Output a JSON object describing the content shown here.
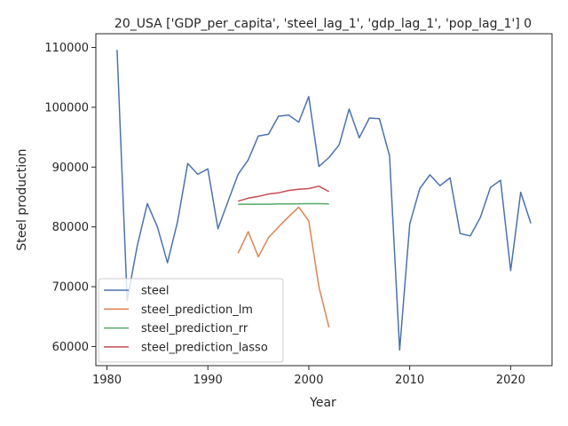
{
  "chart_data": {
    "type": "line",
    "title": "20_USA ['GDP_per_capita', 'steel_lag_1', 'gdp_lag_1', 'pop_lag_1'] 0",
    "xlabel": "Year",
    "ylabel": "Steel production",
    "xlim": [
      1978.9,
      2024.1
    ],
    "ylim": [
      56800,
      112300
    ],
    "xticks": [
      1980,
      1990,
      2000,
      2010,
      2020
    ],
    "yticks": [
      60000,
      70000,
      80000,
      90000,
      100000,
      110000
    ],
    "grid": false,
    "legend_position": "lower-left",
    "series": [
      {
        "name": "steel",
        "color": "#4c72b0",
        "x": [
          1981,
          1982,
          1983,
          1984,
          1985,
          1986,
          1987,
          1988,
          1989,
          1990,
          1991,
          1992,
          1993,
          1994,
          1995,
          1996,
          1997,
          1998,
          1999,
          2000,
          2001,
          2002,
          2003,
          2004,
          2005,
          2006,
          2007,
          2008,
          2009,
          2010,
          2011,
          2012,
          2013,
          2014,
          2015,
          2016,
          2017,
          2018,
          2019,
          2020,
          2021,
          2022
        ],
        "y": [
          109600,
          67700,
          76800,
          83900,
          80000,
          74000,
          80900,
          90600,
          88800,
          89700,
          79700,
          84300,
          88800,
          91200,
          95200,
          95500,
          98500,
          98700,
          97500,
          101800,
          90100,
          91600,
          93700,
          99700,
          94900,
          98200,
          98100,
          91900,
          59400,
          80500,
          86400,
          88700,
          86900,
          88200,
          78900,
          78500,
          81600,
          86600,
          87800,
          72700,
          85800,
          80600
        ]
      },
      {
        "name": "steel_prediction_lm",
        "color": "#dd8452",
        "x": [
          1993,
          1994,
          1995,
          1996,
          1997,
          1998,
          1999,
          2000,
          2001,
          2002
        ],
        "y": [
          75600,
          79200,
          75000,
          78200,
          80000,
          81700,
          83300,
          81000,
          70000,
          63200
        ]
      },
      {
        "name": "steel_prediction_rr",
        "color": "#55a868",
        "x": [
          1993,
          1994,
          1995,
          1996,
          1997,
          1998,
          1999,
          2000,
          2001,
          2002
        ],
        "y": [
          83800,
          83800,
          83800,
          83800,
          83850,
          83850,
          83870,
          83880,
          83880,
          83850
        ]
      },
      {
        "name": "steel_prediction_lasso",
        "color": "#c44e52",
        "x": [
          1993,
          1994,
          1995,
          1996,
          1997,
          1998,
          1999,
          2000,
          2001,
          2002
        ],
        "y": [
          84300,
          84800,
          85100,
          85500,
          85700,
          86100,
          86300,
          86400,
          86800,
          85900
        ]
      }
    ]
  }
}
